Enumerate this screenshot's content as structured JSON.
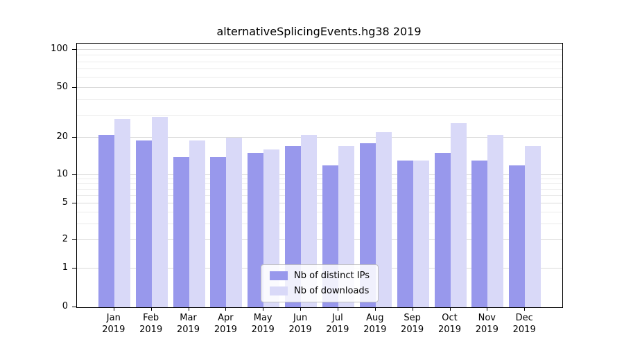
{
  "chart": {
    "title": "alternativeSplicingEvents.hg38 2019"
  },
  "chart_data": {
    "type": "bar",
    "title": "alternativeSplicingEvents.hg38 2019",
    "categories": [
      "Jan",
      "Feb",
      "Mar",
      "Apr",
      "May",
      "Jun",
      "Jul",
      "Aug",
      "Sep",
      "Oct",
      "Nov",
      "Dec"
    ],
    "category_sublabel": "2019",
    "series": [
      {
        "name": "Nb of distinct IPs",
        "color": "#9898ec",
        "values": [
          21,
          19,
          14,
          14,
          15,
          17,
          12,
          18,
          13,
          15,
          13,
          12
        ]
      },
      {
        "name": "Nb of downloads",
        "color": "#d9d9f8",
        "values": [
          28,
          29,
          19,
          20,
          16,
          21,
          17,
          22,
          13,
          26,
          21,
          17
        ]
      }
    ],
    "yscale": "log-with-zero",
    "ylim": [
      0,
      100
    ],
    "yticks": [
      0,
      1,
      2,
      5,
      10,
      20,
      50,
      100
    ],
    "yticks_minor": [
      3,
      4,
      6,
      7,
      8,
      9,
      30,
      40,
      60,
      70,
      80,
      90
    ],
    "grid": true,
    "legend_position": "lower center"
  }
}
